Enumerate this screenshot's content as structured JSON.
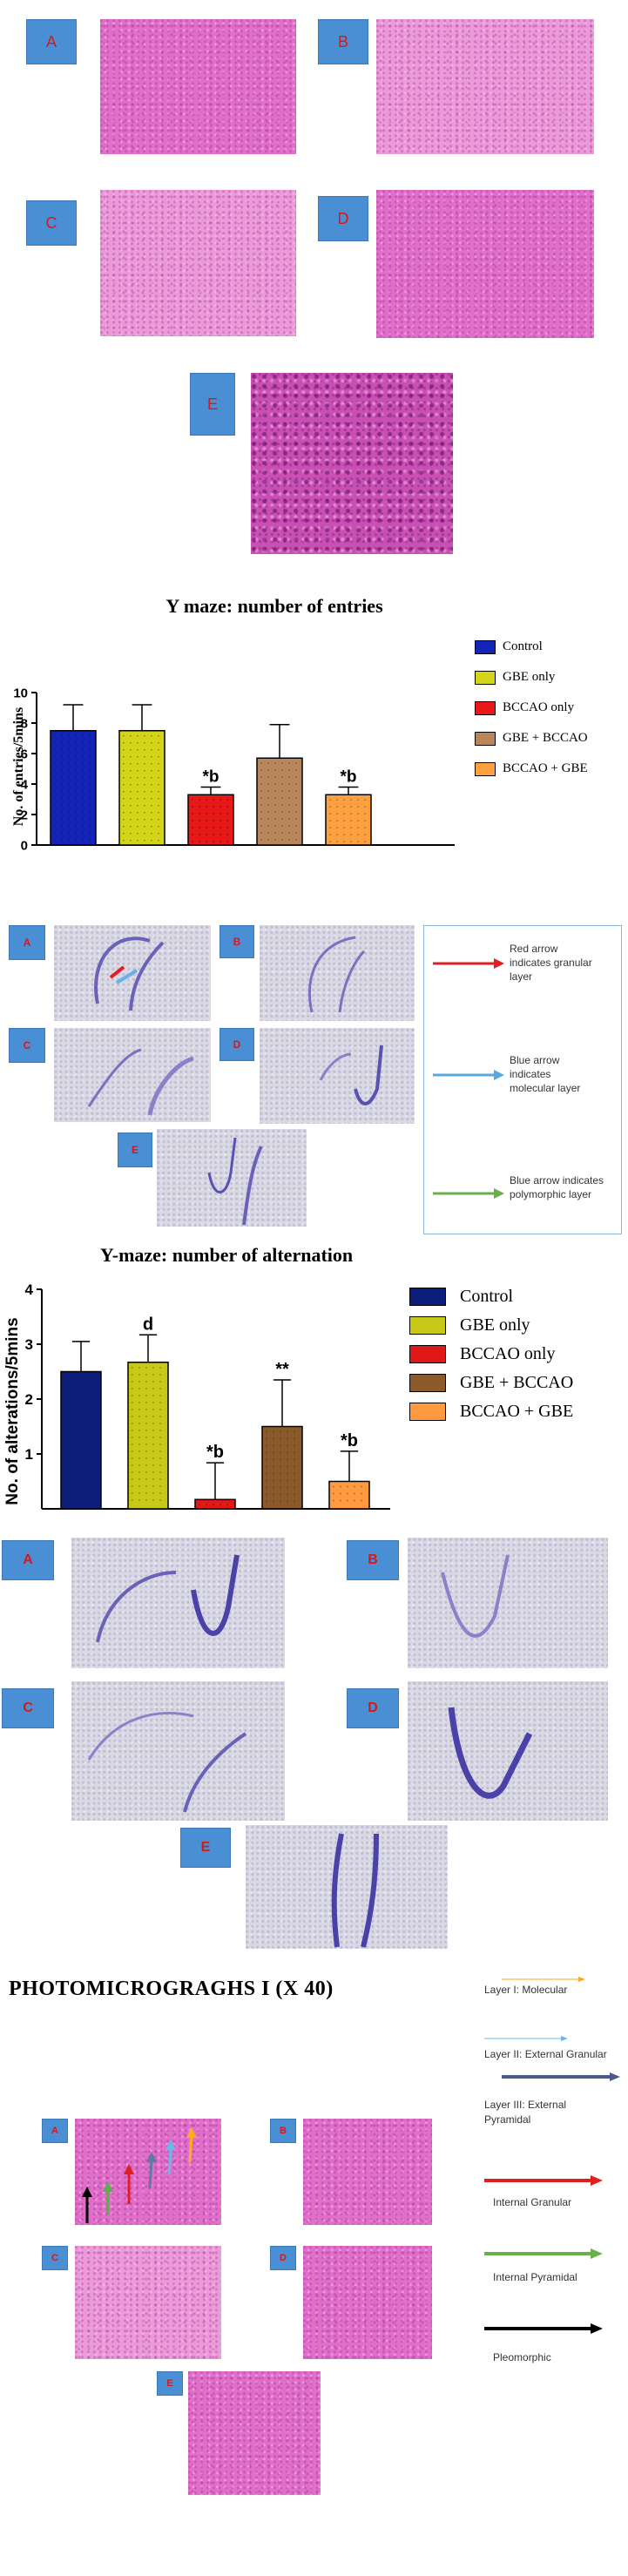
{
  "panels_top": [
    "A",
    "B",
    "C",
    "D",
    "E"
  ],
  "chart1": {
    "title": "Y maze: number of entries",
    "ylabel": "No. of entries/5mins",
    "legend": [
      "Control",
      "GBE only",
      "BCCAO only",
      "GBE + BCCAO",
      "BCCAO + GBE"
    ],
    "colors": [
      "#1424b8",
      "#d4d418",
      "#e81818",
      "#b8865a",
      "#ffa040"
    ]
  },
  "panels_nissl1": [
    "A",
    "B",
    "C",
    "D",
    "E"
  ],
  "legend1": {
    "red": "Red arrow indicates granular layer",
    "blue": "Blue arrow indicates molecular layer",
    "green": "Blue arrow indicates polymorphic layer"
  },
  "chart2": {
    "title": "Y-maze: number of alternation",
    "ylabel": "No. of alterations/5mins",
    "legend": [
      "Control",
      "GBE only",
      "BCCAO only",
      "GBE + BCCAO",
      "BCCAO + GBE"
    ],
    "colors": [
      "#0d1e7a",
      "#c8c818",
      "#e01818",
      "#8a5a2a",
      "#ff9a40"
    ]
  },
  "panels_nissl2": [
    "A",
    "B",
    "C",
    "D",
    "E"
  ],
  "photo_title": "PHOTOMICROGRAGHS I (X 40)",
  "panels_bottom": [
    "A",
    "B",
    "C",
    "D",
    "E"
  ],
  "layer_legend": {
    "l1": "Layer I: Molecular",
    "l2": "Layer II: External Granular",
    "l3": "Layer III: External Pyramidal",
    "l4": "Internal Granular",
    "l5": "Internal Pyramidal",
    "l6": "Pleomorphic"
  },
  "chart_data": [
    {
      "type": "bar",
      "title": "Y maze: number of entries",
      "ylabel": "No. of entries/5mins",
      "ylim": [
        0,
        10
      ],
      "yticks": [
        0,
        2,
        4,
        6,
        8,
        10
      ],
      "categories": [
        "Control",
        "GBE only",
        "BCCAO only",
        "GBE + BCCAO",
        "BCCAO + GBE"
      ],
      "values": [
        7.5,
        7.5,
        3.3,
        5.7,
        3.3
      ],
      "errors": [
        1.7,
        1.7,
        0.5,
        2.2,
        0.5
      ],
      "annotations": [
        "",
        "",
        "*b",
        "",
        "*b"
      ],
      "legend": "right"
    },
    {
      "type": "bar",
      "title": "Y-maze: number of alternation",
      "ylabel": "No. of alterations/5mins",
      "ylim": [
        0,
        4
      ],
      "yticks": [
        1,
        2,
        3,
        4
      ],
      "categories": [
        "Control",
        "GBE only",
        "BCCAO only",
        "GBE + BCCAO",
        "BCCAO + GBE"
      ],
      "values": [
        2.5,
        2.67,
        0.17,
        1.5,
        0.5
      ],
      "errors": [
        0.55,
        0.5,
        0.67,
        0.85,
        0.55
      ],
      "annotations": [
        "",
        "d",
        "*b",
        "**",
        "*b"
      ],
      "legend": "right"
    }
  ]
}
